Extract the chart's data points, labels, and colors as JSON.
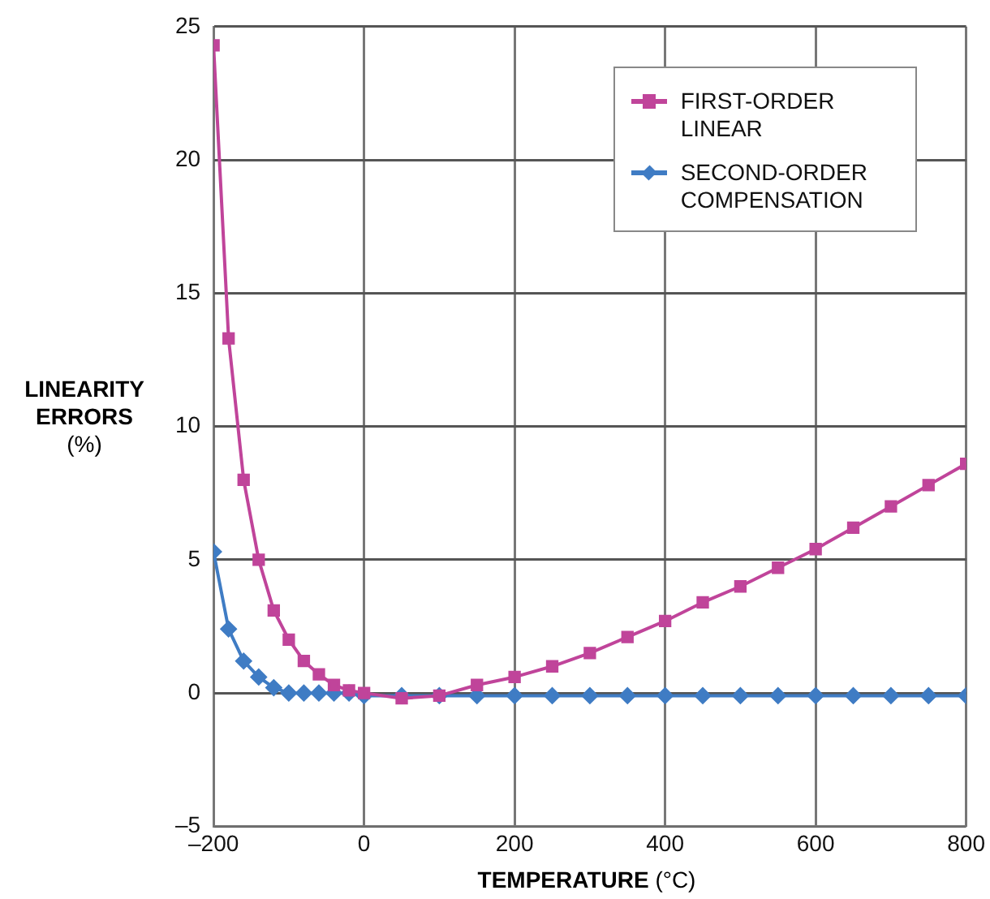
{
  "chart_data": {
    "type": "line",
    "xlabel": "TEMPERATURE (°C)",
    "ylabel": "LINEARITY ERRORS (%)",
    "xlim": [
      -200,
      800
    ],
    "xticks": [
      {
        "value": -200,
        "label": "–200"
      },
      0,
      200,
      400,
      600,
      800
    ],
    "ylim": [
      -5,
      25
    ],
    "yticks": [
      {
        "value": -5,
        "label": "–5"
      },
      0,
      5,
      10,
      15,
      20,
      25
    ],
    "grid": true,
    "legend": "top right",
    "line_style": "solid",
    "series": [
      {
        "name": "FIRST-ORDER LINEAR",
        "color": "#c0449a",
        "marker": "square",
        "x": [
          -200,
          -180,
          -160,
          -140,
          -120,
          -100,
          -80,
          -60,
          -40,
          -20,
          0,
          50,
          100,
          150,
          200,
          250,
          300,
          350,
          400,
          450,
          500,
          550,
          600,
          650,
          700,
          750,
          800
        ],
        "values": [
          24.3,
          13.3,
          8.0,
          5.0,
          3.1,
          2.0,
          1.2,
          0.7,
          0.3,
          0.1,
          0,
          -0.2,
          -0.1,
          0.3,
          0.6,
          1.0,
          1.5,
          2.1,
          2.7,
          3.4,
          4.0,
          4.7,
          5.4,
          6.2,
          7.0,
          7.8,
          8.6
        ]
      },
      {
        "name": "SECOND-ORDER COMPENSATION",
        "color": "#3f7cc4",
        "marker": "diamond",
        "x": [
          -200,
          -180,
          -160,
          -140,
          -120,
          -100,
          -80,
          -60,
          -40,
          -20,
          0,
          50,
          100,
          150,
          200,
          250,
          300,
          350,
          400,
          450,
          500,
          550,
          600,
          650,
          700,
          750,
          800
        ],
        "values": [
          5.3,
          2.4,
          1.2,
          0.6,
          0.2,
          0,
          0,
          0,
          0,
          0,
          -0.1,
          -0.1,
          -0.1,
          -0.1,
          -0.1,
          -0.1,
          -0.1,
          -0.1,
          -0.1,
          -0.1,
          -0.1,
          -0.1,
          -0.1,
          -0.1,
          -0.1,
          -0.1,
          -0.1
        ]
      }
    ]
  }
}
